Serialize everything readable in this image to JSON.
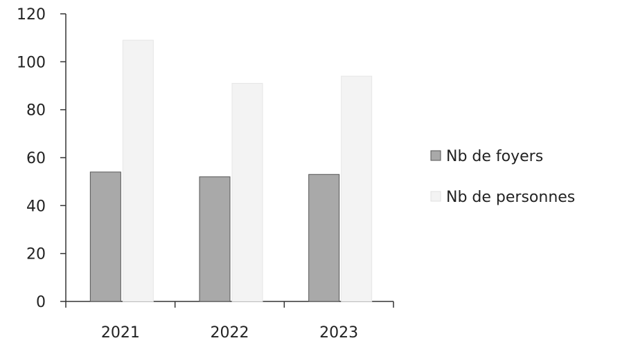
{
  "chart_data": {
    "type": "bar",
    "categories": [
      "2021",
      "2022",
      "2023"
    ],
    "series": [
      {
        "name": "Nb de foyers",
        "values": [
          54,
          52,
          53
        ],
        "color": "#a9a9a9"
      },
      {
        "name": "Nb de personnes",
        "values": [
          109,
          91,
          94
        ],
        "color": "#f3f3f3"
      }
    ],
    "ylim": [
      0,
      120
    ],
    "yticks": [
      0,
      20,
      40,
      60,
      80,
      100,
      120
    ],
    "grid": false,
    "legend": "right"
  }
}
